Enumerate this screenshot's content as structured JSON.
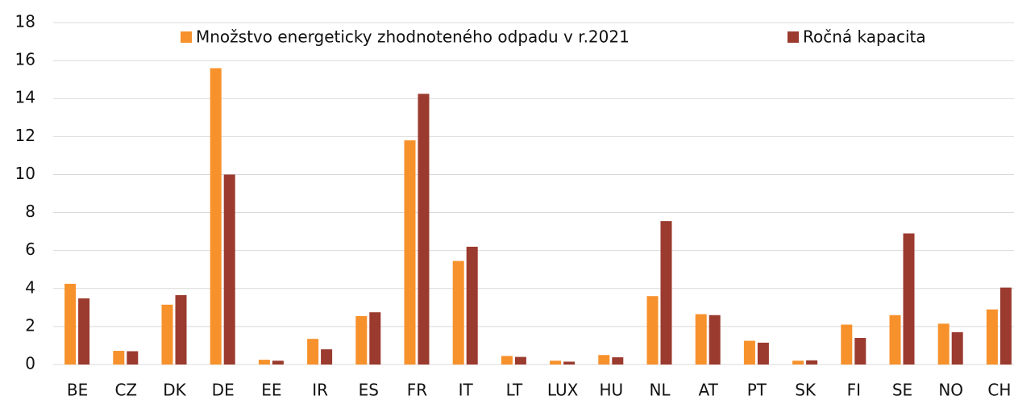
{
  "chart_data": {
    "type": "bar",
    "categories": [
      "BE",
      "CZ",
      "DK",
      "DE",
      "EE",
      "IR",
      "ES",
      "FR",
      "IT",
      "LT",
      "LUX",
      "HU",
      "NL",
      "AT",
      "PT",
      "SK",
      "FI",
      "SE",
      "NO",
      "CH"
    ],
    "series": [
      {
        "name": "Množstvo energeticky zhodnoteného odpadu v r.2021",
        "color": "#f7912b",
        "values": [
          4.25,
          0.72,
          3.15,
          15.6,
          0.25,
          1.35,
          2.55,
          11.8,
          5.45,
          0.45,
          0.2,
          0.5,
          3.6,
          2.65,
          1.25,
          0.2,
          2.1,
          2.6,
          2.15,
          2.9
        ]
      },
      {
        "name": "Ročná kapacita",
        "color": "#9b3a2e",
        "values": [
          3.48,
          0.7,
          3.65,
          10.0,
          0.2,
          0.8,
          2.75,
          14.25,
          6.2,
          0.4,
          0.15,
          0.38,
          7.55,
          2.6,
          1.15,
          0.22,
          1.4,
          6.9,
          1.7,
          4.05
        ]
      }
    ],
    "ylim": [
      0,
      18
    ],
    "yticks": [
      0,
      2,
      4,
      6,
      8,
      10,
      12,
      14,
      16,
      18
    ],
    "grid": true,
    "legend": "top"
  }
}
